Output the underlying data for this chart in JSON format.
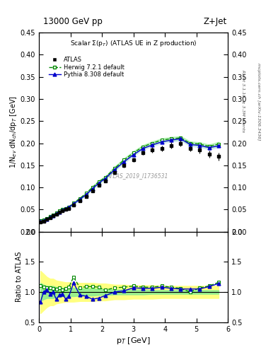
{
  "title_left": "13000 GeV pp",
  "title_right": "Z+Jet",
  "plot_title": "Scalar Σ(p_T) (ATLAS UE in Z production)",
  "watermark": "ATLAS_2019_I1736531",
  "right_label_top": "Rivet 3.1.10, ≥ 3.3M events",
  "right_label_bot": "mcplots.cern.ch [arXiv:1306.3436]",
  "ylabel_main": "1/N$_{ev}$ dN$_{ch}$/dp$_T$ [GeV]",
  "ylabel_ratio": "Ratio to ATLAS",
  "xlabel": "p$_T$ [GeV]",
  "xlim": [
    0,
    6
  ],
  "ylim_main": [
    0,
    0.45
  ],
  "ylim_ratio": [
    0.5,
    2.0
  ],
  "atlas_x": [
    0.05,
    0.15,
    0.25,
    0.35,
    0.45,
    0.55,
    0.65,
    0.75,
    0.85,
    0.95,
    1.1,
    1.3,
    1.5,
    1.7,
    1.9,
    2.1,
    2.4,
    2.7,
    3.0,
    3.3,
    3.6,
    3.9,
    4.2,
    4.5,
    4.8,
    5.1,
    5.4,
    5.7
  ],
  "atlas_y": [
    0.022,
    0.024,
    0.028,
    0.032,
    0.036,
    0.04,
    0.044,
    0.048,
    0.05,
    0.052,
    0.06,
    0.07,
    0.08,
    0.092,
    0.105,
    0.115,
    0.133,
    0.15,
    0.162,
    0.178,
    0.185,
    0.188,
    0.195,
    0.2,
    0.188,
    0.185,
    0.175,
    0.17
  ],
  "atlas_yerr": [
    0.002,
    0.002,
    0.002,
    0.002,
    0.002,
    0.002,
    0.002,
    0.002,
    0.002,
    0.002,
    0.003,
    0.003,
    0.003,
    0.003,
    0.003,
    0.004,
    0.004,
    0.005,
    0.005,
    0.005,
    0.006,
    0.006,
    0.007,
    0.007,
    0.007,
    0.008,
    0.008,
    0.009
  ],
  "herwig_x": [
    0.05,
    0.15,
    0.25,
    0.35,
    0.45,
    0.55,
    0.65,
    0.75,
    0.85,
    0.95,
    1.1,
    1.3,
    1.5,
    1.7,
    1.9,
    2.1,
    2.4,
    2.7,
    3.0,
    3.3,
    3.6,
    3.9,
    4.2,
    4.5,
    4.8,
    5.1,
    5.4,
    5.7
  ],
  "herwig_y": [
    0.025,
    0.026,
    0.03,
    0.034,
    0.038,
    0.042,
    0.047,
    0.05,
    0.053,
    0.056,
    0.065,
    0.075,
    0.087,
    0.1,
    0.113,
    0.122,
    0.143,
    0.162,
    0.178,
    0.192,
    0.2,
    0.207,
    0.21,
    0.212,
    0.2,
    0.198,
    0.193,
    0.198
  ],
  "herwig_band_lo": [
    0.023,
    0.024,
    0.028,
    0.032,
    0.036,
    0.04,
    0.045,
    0.048,
    0.051,
    0.054,
    0.063,
    0.073,
    0.085,
    0.097,
    0.11,
    0.119,
    0.139,
    0.158,
    0.174,
    0.188,
    0.196,
    0.203,
    0.206,
    0.208,
    0.196,
    0.194,
    0.189,
    0.193
  ],
  "herwig_band_hi": [
    0.027,
    0.028,
    0.032,
    0.036,
    0.04,
    0.044,
    0.049,
    0.052,
    0.055,
    0.058,
    0.067,
    0.077,
    0.089,
    0.103,
    0.116,
    0.125,
    0.147,
    0.166,
    0.182,
    0.196,
    0.204,
    0.211,
    0.214,
    0.216,
    0.204,
    0.202,
    0.197,
    0.203
  ],
  "pythia_x": [
    0.05,
    0.15,
    0.25,
    0.35,
    0.45,
    0.55,
    0.65,
    0.75,
    0.85,
    0.95,
    1.1,
    1.3,
    1.5,
    1.7,
    1.9,
    2.1,
    2.4,
    2.7,
    3.0,
    3.3,
    3.6,
    3.9,
    4.2,
    4.5,
    4.8,
    5.1,
    5.4,
    5.7
  ],
  "pythia_y": [
    0.023,
    0.025,
    0.029,
    0.033,
    0.037,
    0.041,
    0.045,
    0.049,
    0.052,
    0.055,
    0.063,
    0.073,
    0.084,
    0.097,
    0.11,
    0.12,
    0.14,
    0.158,
    0.174,
    0.188,
    0.196,
    0.203,
    0.207,
    0.21,
    0.197,
    0.195,
    0.19,
    0.194
  ],
  "pythia_band_lo": [
    0.021,
    0.023,
    0.027,
    0.031,
    0.035,
    0.039,
    0.043,
    0.047,
    0.05,
    0.053,
    0.061,
    0.071,
    0.082,
    0.095,
    0.108,
    0.118,
    0.137,
    0.155,
    0.171,
    0.185,
    0.193,
    0.2,
    0.203,
    0.206,
    0.193,
    0.191,
    0.186,
    0.19
  ],
  "pythia_band_hi": [
    0.025,
    0.027,
    0.031,
    0.035,
    0.039,
    0.043,
    0.047,
    0.051,
    0.054,
    0.057,
    0.065,
    0.075,
    0.086,
    0.099,
    0.112,
    0.122,
    0.143,
    0.161,
    0.177,
    0.191,
    0.199,
    0.206,
    0.211,
    0.214,
    0.201,
    0.199,
    0.194,
    0.198
  ],
  "herwig_ratio_y": [
    1.1,
    1.08,
    1.07,
    1.07,
    1.06,
    1.05,
    1.07,
    1.04,
    1.06,
    1.08,
    1.25,
    1.07,
    1.09,
    1.09,
    1.08,
    1.03,
    1.07,
    1.08,
    1.1,
    1.08,
    1.08,
    1.1,
    1.08,
    1.06,
    1.0,
    1.07,
    1.1,
    1.16
  ],
  "pythia_ratio_y": [
    0.84,
    1.0,
    1.04,
    0.97,
    1.0,
    0.88,
    0.95,
    0.97,
    0.88,
    0.93,
    1.15,
    0.95,
    0.93,
    0.88,
    0.9,
    0.94,
    1.0,
    1.02,
    1.07,
    1.06,
    1.06,
    1.08,
    1.06,
    1.05,
    1.05,
    1.05,
    1.09,
    1.14
  ],
  "atlas_stat_band_lo": [
    0.85,
    0.88,
    0.9,
    0.9,
    0.9,
    0.92,
    0.92,
    0.93,
    0.93,
    0.93,
    0.93,
    0.94,
    0.94,
    0.94,
    0.95,
    0.95,
    0.96,
    0.96,
    0.96,
    0.96,
    0.97,
    0.97,
    0.97,
    0.97,
    0.97,
    0.97,
    0.97,
    0.97
  ],
  "atlas_stat_band_hi": [
    1.15,
    1.12,
    1.1,
    1.1,
    1.1,
    1.08,
    1.08,
    1.07,
    1.07,
    1.07,
    1.07,
    1.06,
    1.06,
    1.06,
    1.05,
    1.05,
    1.04,
    1.04,
    1.04,
    1.04,
    1.03,
    1.03,
    1.03,
    1.03,
    1.03,
    1.03,
    1.03,
    1.03
  ],
  "atlas_sys_band_lo": [
    0.65,
    0.7,
    0.75,
    0.78,
    0.78,
    0.81,
    0.82,
    0.83,
    0.84,
    0.84,
    0.84,
    0.85,
    0.85,
    0.85,
    0.86,
    0.86,
    0.88,
    0.88,
    0.89,
    0.89,
    0.89,
    0.9,
    0.9,
    0.9,
    0.9,
    0.9,
    0.9,
    0.9
  ],
  "atlas_sys_band_hi": [
    1.35,
    1.3,
    1.25,
    1.22,
    1.22,
    1.19,
    1.18,
    1.17,
    1.16,
    1.16,
    1.16,
    1.15,
    1.15,
    1.15,
    1.14,
    1.14,
    1.12,
    1.12,
    1.11,
    1.11,
    1.11,
    1.1,
    1.1,
    1.1,
    1.1,
    1.1,
    1.1,
    1.1
  ],
  "color_atlas": "#000000",
  "color_herwig": "#008800",
  "color_pythia": "#0000cc",
  "color_herwig_band": "#90ee90",
  "color_atlas_stat": "#90ee90",
  "color_atlas_sys": "#ffff80",
  "yticks_main": [
    0.0,
    0.05,
    0.1,
    0.15,
    0.2,
    0.25,
    0.3,
    0.35,
    0.4,
    0.45
  ],
  "yticks_ratio": [
    0.5,
    1.0,
    1.5,
    2.0
  ],
  "xticks": [
    0,
    1,
    2,
    3,
    4,
    5,
    6
  ]
}
